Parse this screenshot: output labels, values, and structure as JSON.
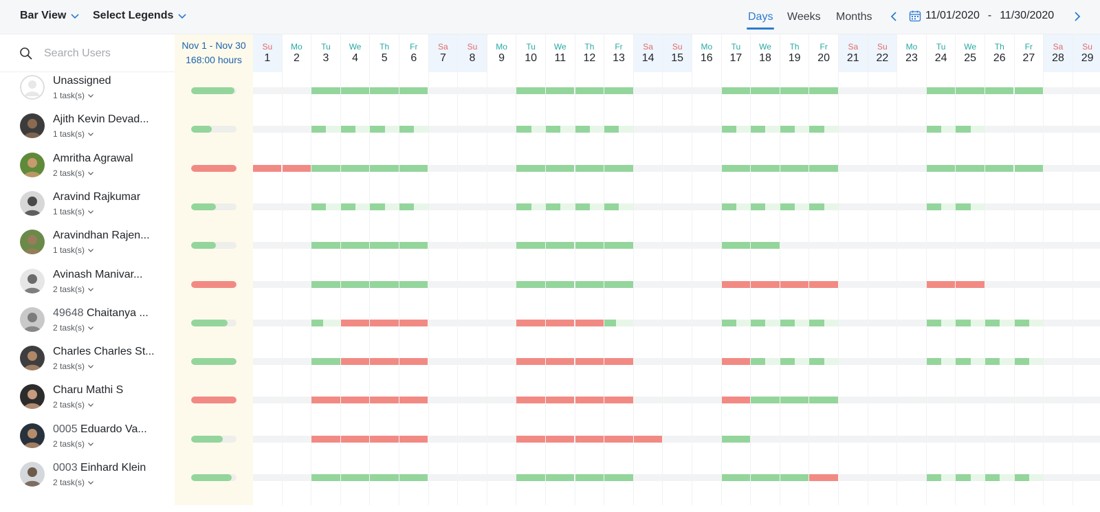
{
  "toolbar": {
    "bar_view": "Bar View",
    "select_legends": "Select Legends",
    "tabs": [
      "Days",
      "Weeks",
      "Months"
    ],
    "active_tab": "Days",
    "date_from": "11/01/2020",
    "date_sep": "-",
    "date_to": "11/30/2020"
  },
  "search": {
    "placeholder": "Search Users"
  },
  "summary": {
    "range": "Nov 1 - Nov 30",
    "hours": "168:00 hours"
  },
  "colors": {
    "green": "#94d59c",
    "green_light": "#e7f6e8",
    "red": "#f28a84",
    "track": "#f2f3f4",
    "accent": "#2b7bd1",
    "weekday_label": "#27a9a3",
    "weekend_label": "#e06b6b"
  },
  "days": [
    {
      "dn": "Su",
      "dd": "1"
    },
    {
      "dn": "Mo",
      "dd": "2"
    },
    {
      "dn": "Tu",
      "dd": "3"
    },
    {
      "dn": "We",
      "dd": "4"
    },
    {
      "dn": "Th",
      "dd": "5"
    },
    {
      "dn": "Fr",
      "dd": "6"
    },
    {
      "dn": "Sa",
      "dd": "7"
    },
    {
      "dn": "Su",
      "dd": "8"
    },
    {
      "dn": "Mo",
      "dd": "9"
    },
    {
      "dn": "Tu",
      "dd": "10"
    },
    {
      "dn": "We",
      "dd": "11"
    },
    {
      "dn": "Th",
      "dd": "12"
    },
    {
      "dn": "Fr",
      "dd": "13"
    },
    {
      "dn": "Sa",
      "dd": "14"
    },
    {
      "dn": "Su",
      "dd": "15"
    },
    {
      "dn": "Mo",
      "dd": "16"
    },
    {
      "dn": "Tu",
      "dd": "17"
    },
    {
      "dn": "We",
      "dd": "18"
    },
    {
      "dn": "Th",
      "dd": "19"
    },
    {
      "dn": "Fr",
      "dd": "20"
    },
    {
      "dn": "Sa",
      "dd": "21"
    },
    {
      "dn": "Su",
      "dd": "22"
    },
    {
      "dn": "Mo",
      "dd": "23"
    },
    {
      "dn": "Tu",
      "dd": "24"
    },
    {
      "dn": "We",
      "dd": "25"
    },
    {
      "dn": "Th",
      "dd": "26"
    },
    {
      "dn": "Fr",
      "dd": "27"
    },
    {
      "dn": "Sa",
      "dd": "28"
    },
    {
      "dn": "Su",
      "dd": "29"
    }
  ],
  "users": [
    {
      "id": "",
      "name": "Unassigned",
      "tasks": "1 task(s)",
      "avatar": "placeholder",
      "summary": {
        "fill": 0.95,
        "color": "green"
      },
      "segments": [
        {
          "from": 2,
          "to": 6,
          "c": "g"
        },
        {
          "from": 9,
          "to": 13,
          "c": "g"
        },
        {
          "from": 16,
          "to": 20,
          "c": "g"
        },
        {
          "from": 23,
          "to": 27,
          "c": "g"
        }
      ]
    },
    {
      "id": "",
      "name": "Ajith Kevin Devad...",
      "tasks": "1 task(s)",
      "avatar": "a1",
      "summary": {
        "fill": 0.45,
        "color": "green"
      },
      "segments": [
        {
          "from": 2,
          "to": 6,
          "c": "p"
        },
        {
          "from": 9,
          "to": 13,
          "c": "p"
        },
        {
          "from": 16,
          "to": 20,
          "c": "p"
        },
        {
          "from": 23,
          "to": 25,
          "c": "p"
        }
      ]
    },
    {
      "id": "",
      "name": "Amritha Agrawal",
      "tasks": "2 task(s)",
      "avatar": "a2",
      "summary": {
        "fill": 1.0,
        "color": "red"
      },
      "segments": [
        {
          "from": 0,
          "to": 2,
          "c": "r"
        },
        {
          "from": 2,
          "to": 6,
          "c": "g"
        },
        {
          "from": 9,
          "to": 13,
          "c": "g"
        },
        {
          "from": 16,
          "to": 20,
          "c": "g"
        },
        {
          "from": 23,
          "to": 27,
          "c": "g"
        }
      ]
    },
    {
      "id": "",
      "name": "Aravind Rajkumar",
      "tasks": "1 task(s)",
      "avatar": "a3",
      "summary": {
        "fill": 0.55,
        "color": "green"
      },
      "segments": [
        {
          "from": 2,
          "to": 6,
          "c": "p"
        },
        {
          "from": 9,
          "to": 13,
          "c": "p"
        },
        {
          "from": 16,
          "to": 20,
          "c": "p"
        },
        {
          "from": 23,
          "to": 25,
          "c": "p"
        }
      ]
    },
    {
      "id": "",
      "name": "Aravindhan Rajen...",
      "tasks": "1 task(s)",
      "avatar": "a4",
      "summary": {
        "fill": 0.55,
        "color": "green"
      },
      "segments": [
        {
          "from": 2,
          "to": 6,
          "c": "g"
        },
        {
          "from": 9,
          "to": 13,
          "c": "g"
        },
        {
          "from": 16,
          "to": 18,
          "c": "g"
        }
      ]
    },
    {
      "id": "",
      "name": "Avinash Manivar...",
      "tasks": "2 task(s)",
      "avatar": "a5",
      "summary": {
        "fill": 1.0,
        "color": "red"
      },
      "segments": [
        {
          "from": 2,
          "to": 6,
          "c": "g"
        },
        {
          "from": 9,
          "to": 13,
          "c": "g"
        },
        {
          "from": 16,
          "to": 20,
          "c": "r"
        },
        {
          "from": 23,
          "to": 25,
          "c": "r"
        }
      ]
    },
    {
      "id": "49648",
      "name": "Chaitanya ...",
      "tasks": "2 task(s)",
      "avatar": "a6",
      "summary": {
        "fill": 0.8,
        "color": "green"
      },
      "segments": [
        {
          "from": 2,
          "to": 2.4,
          "c": "g"
        },
        {
          "from": 2.4,
          "to": 3,
          "c": "l"
        },
        {
          "from": 3,
          "to": 6,
          "c": "r"
        },
        {
          "from": 9,
          "to": 12,
          "c": "r"
        },
        {
          "from": 12,
          "to": 12.4,
          "c": "g"
        },
        {
          "from": 12.4,
          "to": 13,
          "c": "l"
        },
        {
          "from": 16,
          "to": 20,
          "c": "p"
        },
        {
          "from": 23,
          "to": 27,
          "c": "p"
        }
      ]
    },
    {
      "id": "",
      "name": "Charles Charles St...",
      "tasks": "2 task(s)",
      "avatar": "a7",
      "summary": {
        "fill": 1.0,
        "color": "green"
      },
      "segments": [
        {
          "from": 2,
          "to": 3,
          "c": "g"
        },
        {
          "from": 3,
          "to": 6,
          "c": "r"
        },
        {
          "from": 9,
          "to": 13,
          "c": "r"
        },
        {
          "from": 16,
          "to": 17,
          "c": "r"
        },
        {
          "from": 17,
          "to": 20,
          "c": "p"
        },
        {
          "from": 23,
          "to": 27,
          "c": "p"
        }
      ]
    },
    {
      "id": "",
      "name": "Charu Mathi S",
      "tasks": "2 task(s)",
      "avatar": "a8",
      "summary": {
        "fill": 1.0,
        "color": "red"
      },
      "segments": [
        {
          "from": 2,
          "to": 6,
          "c": "r"
        },
        {
          "from": 9,
          "to": 13,
          "c": "r"
        },
        {
          "from": 16,
          "to": 17,
          "c": "r"
        },
        {
          "from": 17,
          "to": 20,
          "c": "g"
        }
      ]
    },
    {
      "id": "0005",
      "name": "Eduardo Va...",
      "tasks": "2 task(s)",
      "avatar": "a9",
      "summary": {
        "fill": 0.7,
        "color": "green"
      },
      "segments": [
        {
          "from": 2,
          "to": 6,
          "c": "r"
        },
        {
          "from": 9,
          "to": 14,
          "c": "r"
        },
        {
          "from": 16,
          "to": 17,
          "c": "g"
        }
      ]
    },
    {
      "id": "0003",
      "name": "Einhard Klein",
      "tasks": "2 task(s)",
      "avatar": "a10",
      "summary": {
        "fill": 0.9,
        "color": "green"
      },
      "segments": [
        {
          "from": 2,
          "to": 6,
          "c": "g"
        },
        {
          "from": 9,
          "to": 13,
          "c": "g"
        },
        {
          "from": 16,
          "to": 19,
          "c": "g"
        },
        {
          "from": 19,
          "to": 20,
          "c": "r"
        },
        {
          "from": 23,
          "to": 27,
          "c": "p"
        }
      ]
    }
  ]
}
